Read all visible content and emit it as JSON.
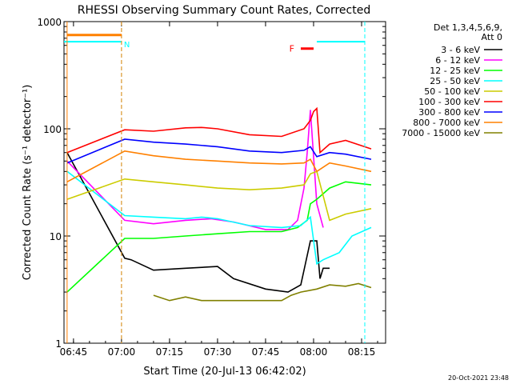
{
  "chart_data": {
    "type": "line",
    "title": "RHESSI Observing Summary Count Rates, Corrected",
    "xlabel": "Start Time (20-Jul-13 06:42:02)",
    "ylabel": "Corrected Count Rate (s⁻¹ detector⁻¹)",
    "y_scale": "log",
    "ylim": [
      1,
      1000
    ],
    "xlim": [
      "06:42:02",
      "08:22:30"
    ],
    "x_ticks": [
      "06:45",
      "07:00",
      "07:15",
      "07:30",
      "07:45",
      "08:00",
      "08:15"
    ],
    "y_ticks": [
      "1",
      "10",
      "100",
      "1000"
    ],
    "footer": "20-Oct-2021 23:48",
    "legend": {
      "header_line1": "Det 1,3,4,5,6,9,",
      "header_line2": "Att 0",
      "placement": "right, outside plot"
    },
    "series": [
      {
        "name": "3 - 6 keV",
        "color": "#000000",
        "x": [
          "06:43",
          "07:01",
          "07:03",
          "07:10",
          "07:20",
          "07:30",
          "07:35",
          "07:45",
          "07:52",
          "07:56",
          "07:59",
          "08:01",
          "08:02",
          "08:03",
          "08:05"
        ],
        "values": [
          60,
          6.2,
          6.0,
          4.8,
          5.0,
          5.2,
          4.0,
          3.2,
          3.0,
          3.5,
          9,
          9,
          4.0,
          5.0,
          5.0
        ]
      },
      {
        "name": "6 - 12 keV",
        "color": "#ff00ff",
        "x": [
          "06:43",
          "07:01",
          "07:10",
          "07:20",
          "07:28",
          "07:35",
          "07:45",
          "07:52",
          "07:55",
          "07:57",
          "07:58",
          "07:59",
          "08:01",
          "08:03"
        ],
        "values": [
          50,
          14,
          13,
          14,
          14.5,
          13.5,
          11.5,
          11.5,
          14,
          28,
          60,
          150,
          20,
          12
        ]
      },
      {
        "name": "12 - 25 keV",
        "color": "#00ff00",
        "x": [
          "06:43",
          "07:01",
          "07:10",
          "07:20",
          "07:30",
          "07:40",
          "07:50",
          "07:55",
          "07:58",
          "07:59",
          "08:01",
          "08:05",
          "08:10",
          "08:18"
        ],
        "values": [
          3.0,
          9.5,
          9.5,
          10,
          10.5,
          11,
          11,
          12,
          14,
          20,
          22,
          28,
          32,
          30
        ]
      },
      {
        "name": "25 - 50 keV",
        "color": "#00ffff",
        "x": [
          "06:43",
          "07:01",
          "07:10",
          "07:20",
          "07:25",
          "07:30",
          "07:40",
          "07:50",
          "07:56",
          "07:59",
          "08:01",
          "08:03",
          "08:08",
          "08:12",
          "08:18"
        ],
        "values": [
          40,
          15.5,
          15,
          14.5,
          15,
          14.5,
          12.5,
          12,
          12.5,
          15,
          5.5,
          6,
          7,
          10,
          12
        ]
      },
      {
        "name": "50 - 100 keV",
        "color": "#cccc00",
        "x": [
          "06:43",
          "07:01",
          "07:10",
          "07:20",
          "07:30",
          "07:40",
          "07:50",
          "07:57",
          "07:59",
          "08:01",
          "08:05",
          "08:10",
          "08:18"
        ],
        "values": [
          22,
          34,
          32,
          30,
          28,
          27,
          28,
          30,
          38,
          40,
          14,
          16,
          18
        ]
      },
      {
        "name": "100 - 300 keV",
        "color": "#ff0000",
        "x": [
          "06:43",
          "07:01",
          "07:10",
          "07:20",
          "07:25",
          "07:30",
          "07:40",
          "07:50",
          "07:57",
          "07:59",
          "08:00",
          "08:01",
          "08:02",
          "08:05",
          "08:10",
          "08:18"
        ],
        "values": [
          60,
          98,
          95,
          102,
          103,
          100,
          88,
          85,
          100,
          120,
          145,
          155,
          60,
          72,
          78,
          65
        ]
      },
      {
        "name": "300 - 800 keV",
        "color": "#0000ff",
        "x": [
          "06:43",
          "07:01",
          "07:10",
          "07:20",
          "07:30",
          "07:40",
          "07:50",
          "07:57",
          "07:59",
          "08:01",
          "08:05",
          "08:10",
          "08:18"
        ],
        "values": [
          48,
          80,
          75,
          72,
          68,
          62,
          60,
          63,
          68,
          55,
          60,
          58,
          52
        ]
      },
      {
        "name": "800 - 7000 keV",
        "color": "#ff8000",
        "x": [
          "06:43",
          "07:01",
          "07:10",
          "07:20",
          "07:30",
          "07:40",
          "07:50",
          "07:57",
          "07:59",
          "08:01",
          "08:05",
          "08:10",
          "08:18"
        ],
        "values": [
          32,
          62,
          56,
          52,
          50,
          48,
          47,
          48,
          52,
          40,
          48,
          45,
          40
        ]
      },
      {
        "name": "7000 - 15000 keV",
        "color": "#808000",
        "x": [
          "07:10",
          "07:15",
          "07:20",
          "07:25",
          "07:50",
          "07:53",
          "07:56",
          "08:01",
          "08:05",
          "08:10",
          "08:14",
          "08:18"
        ],
        "values": [
          2.8,
          2.5,
          2.7,
          2.5,
          2.5,
          2.8,
          3.0,
          3.2,
          3.5,
          3.4,
          3.6,
          3.3
        ]
      }
    ],
    "annotations": [
      {
        "label": "F",
        "color": "#ff0000",
        "note": "flare interval marker near 08:00"
      },
      {
        "label": "N",
        "color": "#00ffff",
        "note": "night marker at left segment end"
      }
    ],
    "attenuator_bar": {
      "color": "#ff8000",
      "from": "06:43",
      "to": "07:00",
      "level": 750
    },
    "night_segments": [
      {
        "from": "06:42:02",
        "to": "07:00",
        "level": 650,
        "color": "#00ffff"
      },
      {
        "from": "08:01",
        "to": "08:16",
        "level": 650,
        "color": "#00ffff"
      }
    ]
  }
}
